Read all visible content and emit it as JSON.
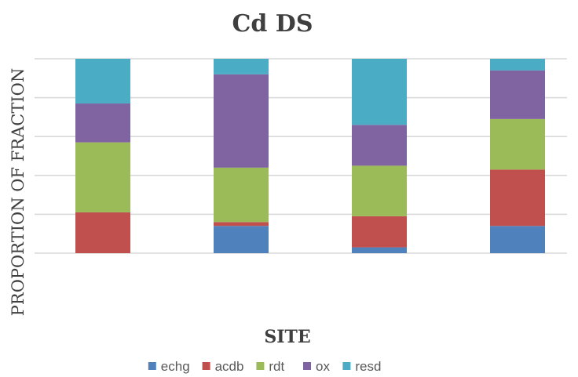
{
  "chart_data": {
    "type": "bar",
    "stacked": true,
    "title": "Cd DS",
    "xlabel": "SITE",
    "ylabel": "PROPORTION OF FRACTION",
    "categories": [
      "",
      "",
      "",
      ""
    ],
    "ylim": [
      0,
      1
    ],
    "grid": true,
    "legend_position": "bottom",
    "series": [
      {
        "name": "echg",
        "color": "#4f81bd",
        "values": [
          0.0,
          0.14,
          0.03,
          0.14
        ]
      },
      {
        "name": "acdb",
        "color": "#c0504d",
        "values": [
          0.21,
          0.02,
          0.16,
          0.29
        ]
      },
      {
        "name": "rdt",
        "color": "#9bbb59",
        "values": [
          0.36,
          0.28,
          0.26,
          0.26
        ]
      },
      {
        "name": "ox",
        "color": "#8064a2",
        "values": [
          0.2,
          0.48,
          0.21,
          0.25
        ]
      },
      {
        "name": "resd",
        "color": "#4bacc6",
        "values": [
          0.23,
          0.08,
          0.34,
          0.06
        ]
      }
    ]
  }
}
